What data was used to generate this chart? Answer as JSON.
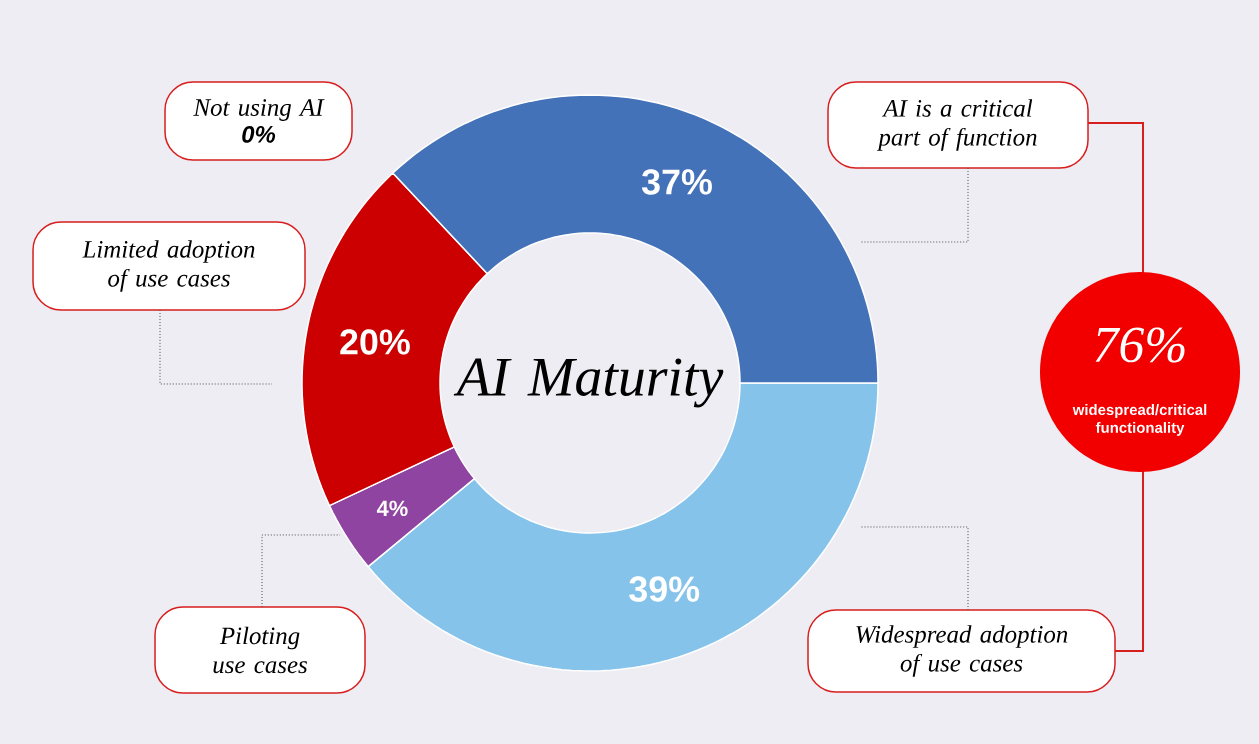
{
  "chart_data": {
    "type": "donut",
    "title": "AI Maturity",
    "categories": [
      "Widespread adoption of use cases",
      "Piloting use cases",
      "Limited adoption of use cases",
      "Not using AI",
      "AI is a critical part of function"
    ],
    "values": [
      39,
      4,
      20,
      0,
      37
    ],
    "value_labels": [
      "39%",
      "4%",
      "20%",
      "0%",
      "37%"
    ],
    "colors": [
      "#86c3ea",
      "#8e44a0",
      "#cc0000",
      "#cccccc",
      "#4472b8"
    ],
    "annotations": [
      "76%",
      "widespread/critical functionality"
    ]
  }
}
